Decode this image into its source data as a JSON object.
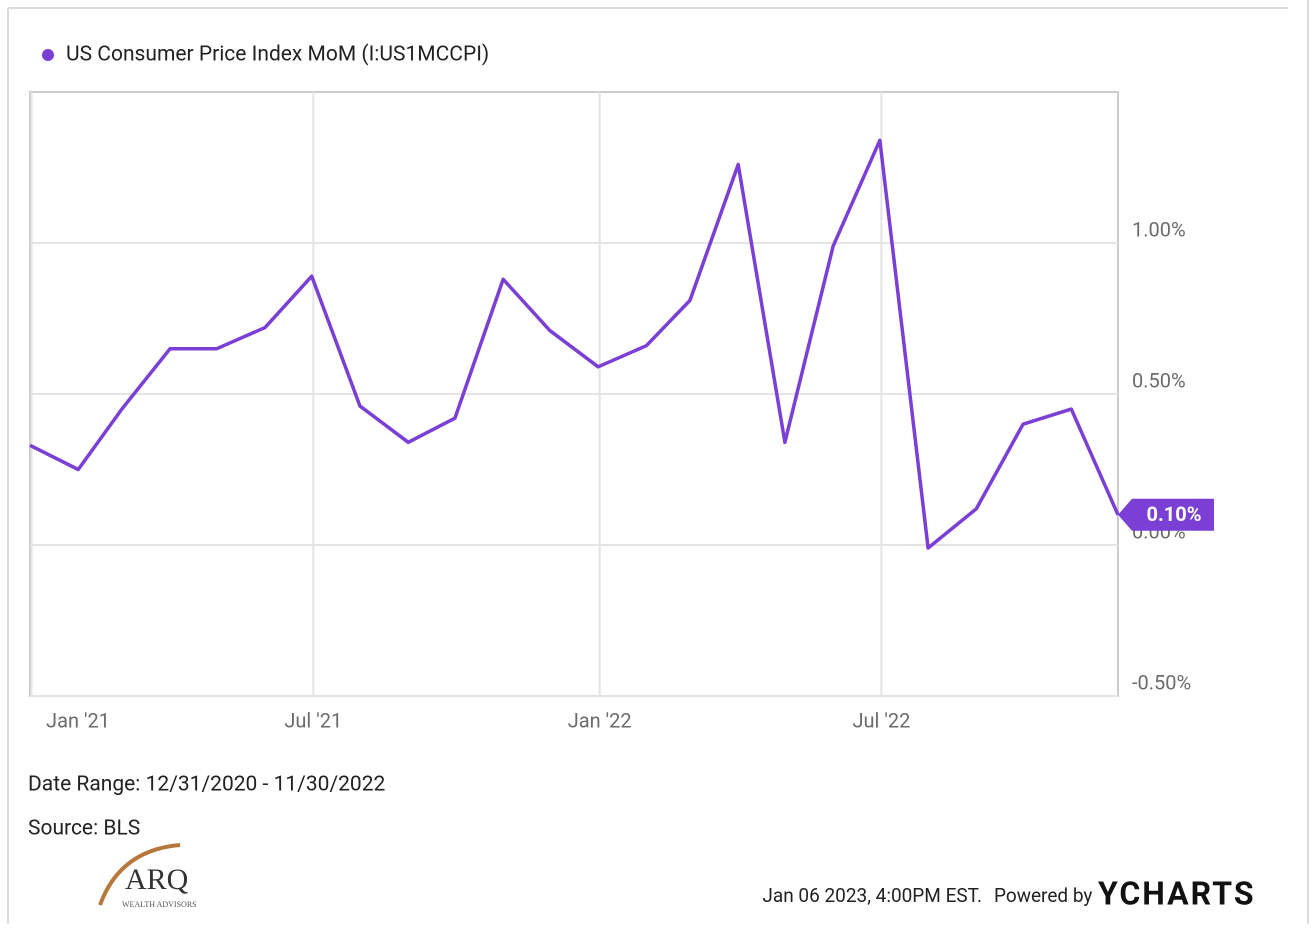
{
  "chart_data": {
    "type": "line",
    "x": [
      "2020-12-31",
      "2021-01-31",
      "2021-02-28",
      "2021-03-31",
      "2021-04-30",
      "2021-05-31",
      "2021-06-30",
      "2021-07-31",
      "2021-08-31",
      "2021-09-30",
      "2021-10-31",
      "2021-11-30",
      "2021-12-31",
      "2022-01-31",
      "2022-02-28",
      "2022-03-31",
      "2022-04-30",
      "2022-05-31",
      "2022-06-30",
      "2022-07-31",
      "2022-08-31",
      "2022-09-30",
      "2022-10-31",
      "2022-11-30"
    ],
    "series": [
      {
        "name": "US Consumer Price Index MoM (I:US1MCCPI)",
        "color": "#7b3fd6",
        "values": [
          0.33,
          0.25,
          0.45,
          0.65,
          0.65,
          0.72,
          0.89,
          0.46,
          0.34,
          0.42,
          0.88,
          0.71,
          0.59,
          0.66,
          0.81,
          1.26,
          0.34,
          0.99,
          1.34,
          -0.01,
          0.12,
          0.4,
          0.45,
          0.1
        ],
        "last_label": "0.10%"
      }
    ],
    "xlim": [
      "2020-12-31",
      "2022-11-30"
    ],
    "xticks": [
      {
        "value": "2021-01-01",
        "label": "Jan '21"
      },
      {
        "value": "2021-07-01",
        "label": "Jul '21"
      },
      {
        "value": "2022-01-01",
        "label": "Jan '22"
      },
      {
        "value": "2022-07-01",
        "label": "Jul '22"
      }
    ],
    "ylim": [
      -0.5,
      1.5
    ],
    "yticks": [
      {
        "value": -0.5,
        "label": "-0.50%"
      },
      {
        "value": 0,
        "label": "0.00%"
      },
      {
        "value": 0.5,
        "label": "0.50%"
      },
      {
        "value": 1,
        "label": "1.00%"
      }
    ],
    "grid": true,
    "date_range": "Date Range: 12/31/2020 - 11/30/2022",
    "source": "Source: BLS",
    "timestamp": "Jan 06 2023, 4:00PM EST.",
    "powered_by": "Powered by",
    "brand": "YCHARTS",
    "logo": {
      "name": "ARQ",
      "tagline": "WEALTH ADVISORS"
    }
  }
}
